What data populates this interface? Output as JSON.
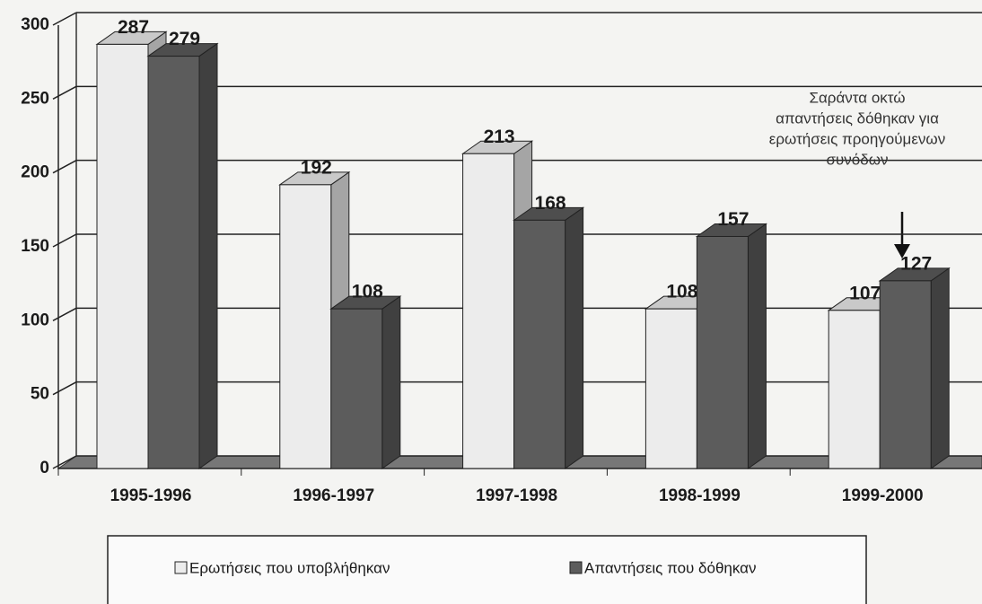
{
  "chart_data": {
    "type": "bar3d",
    "categories": [
      "1995-1996",
      "1996-1997",
      "1997-1998",
      "1998-1999",
      "1999-2000"
    ],
    "series": [
      {
        "name": "Ερωτήσεις που υποβλήθηκαν",
        "color": "#ececec",
        "values": [
          287,
          192,
          213,
          108,
          107
        ]
      },
      {
        "name": "Απαντήσεις που δόθηκαν",
        "color": "#5c5c5c",
        "values": [
          279,
          108,
          168,
          157,
          127
        ]
      }
    ],
    "ylim": [
      0,
      300
    ],
    "yticks": [
      0,
      50,
      100,
      150,
      200,
      250,
      300
    ],
    "grid": true,
    "annotation": [
      "Σαράντα οκτώ",
      "απαντήσεις δόθηκαν για",
      "ερωτήσεις προηγούμενων",
      "συνόδων"
    ]
  }
}
